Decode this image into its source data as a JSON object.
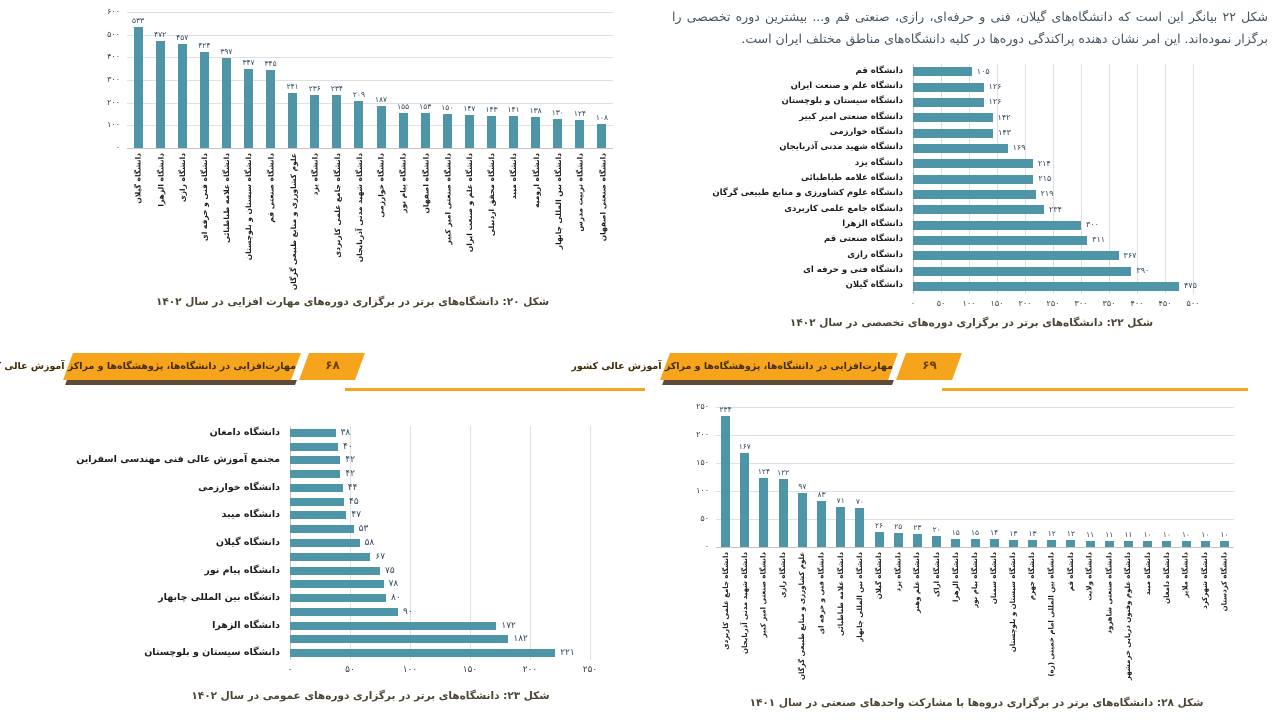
{
  "banner": {
    "title": "مهارت‌افزایی در دانشگاه‌ها، پژوهشگاه‌ها و مراکز آموزش عالی کشور",
    "left_page_number": "۶۸",
    "right_page_number": "۶۹"
  },
  "page_right": {
    "paragraph": "شکل ۲۲ بیانگر این است که دانشگاه‌های گیلان، فنی و حرفه‌ای، رازی، صنعتی قم و... بیشترین دوره تخصصی را برگزار نموده‌اند. این امر نشان دهنده پراکندگی دوره‌ها در کلیه دانشگاه‌های مناطق مختلف ایران است."
  },
  "colors": {
    "bar": "#4e96a7",
    "banner": "#f7a41d",
    "banner_shadow": "#5d4a39",
    "grid": "#e0e0e0",
    "caption": "#4b4430",
    "value_label": "#31475c"
  },
  "chart_data": [
    {
      "id": "fig20",
      "type": "bar",
      "orientation": "vertical",
      "title": "شکل ۲۰: دانشگاه‌های برتر در برگزاری دوره‌های مهارت افزایی در سال ۱۴۰۲",
      "categories": [
        "دانشگاه گیلان",
        "دانشگاه الزهرا",
        "دانشگاه رازی",
        "دانشگاه فنی و حرفه ای",
        "دانشگاه علامه طباطبائی",
        "دانشگاه سیستان و بلوچستان",
        "دانشگاه صنعتی قم",
        "علوم کشاورزی و منابع طبیعی گرگان",
        "دانشگاه یزد",
        "دانشگاه جامع علمی کاربردی",
        "دانشگاه شهید مدنی آذربایجان",
        "دانشگاه خوارزمی",
        "دانشگاه پیام نور",
        "دانشگاه اصفهان",
        "دانشگاه صنعتی امیر کبیر",
        "دانشگاه علم و صنعت ایران",
        "دانشگاه محقق اردبیلی",
        "دانشگاه میبد",
        "دانشگاه ارومیه",
        "دانشگاه بین المللی چابهار",
        "دانشگاه تربیت مدرس",
        "دانشگاه صنعتی اصفهان"
      ],
      "values": [
        533,
        472,
        457,
        424,
        397,
        347,
        345,
        241,
        236,
        234,
        209,
        187,
        155,
        153,
        150,
        147,
        143,
        141,
        138,
        130,
        124,
        108
      ],
      "xlabel": "",
      "ylabel": "",
      "ylim": [
        0,
        600
      ],
      "ytick_step": 100,
      "grid": true,
      "number_format": "persian-digits",
      "legend": "none"
    },
    {
      "id": "fig22",
      "type": "bar",
      "orientation": "horizontal",
      "title": "شکل ۲۲: دانشگاه‌های برتر در برگزاری دوره‌های تخصصی در سال ۱۴۰۲",
      "categories": [
        "دانشگاه قم",
        "دانشگاه علم و صنعت ایران",
        "دانشگاه سیستان و بلوچستان",
        "دانشگاه صنعتی امیر کبیر",
        "دانشگاه خوارزمی",
        "دانشگاه شهید مدنی آذربایجان",
        "دانشگاه یزد",
        "دانشگاه علامه طباطبائی",
        "دانشگاه علوم کشاورزی و منابع طبیعی گرگان",
        "دانشگاه جامع علمی کاربردی",
        "دانشگاه الزهرا",
        "دانشگاه صنعتی قم",
        "دانشگاه رازی",
        "دانشگاه فنی و حرفه ای",
        "دانشگاه گیلان"
      ],
      "values": [
        105,
        126,
        126,
        142,
        143,
        169,
        214,
        215,
        219,
        234,
        300,
        311,
        367,
        390,
        475
      ],
      "xlabel": "",
      "ylabel": "",
      "xlim": [
        0,
        500
      ],
      "xtick_step": 50,
      "grid": true,
      "number_format": "persian-digits",
      "legend": "none"
    },
    {
      "id": "fig23",
      "type": "bar",
      "orientation": "horizontal",
      "title": "شکل ۲۳: دانشگاه‌های برتر در برگزاری دوره‌های عمومی در سال ۱۴۰۲",
      "categories": [
        "دانشگاه دامغان",
        "",
        "مجتمع آموزش عالی فنی مهندسی اسفراین",
        "",
        "دانشگاه خوارزمی",
        "",
        "دانشگاه میبد",
        "",
        "دانشگاه گیلان",
        "",
        "دانشگاه پیام نور",
        "",
        "دانشگاه بین المللی چابهار",
        "",
        "دانشگاه الزهرا",
        "",
        "دانشگاه سیستان و بلوچستان"
      ],
      "values": [
        38,
        40,
        42,
        42,
        44,
        45,
        47,
        53,
        58,
        67,
        75,
        78,
        80,
        90,
        172,
        182,
        221
      ],
      "xlabel": "",
      "ylabel": "",
      "xlim": [
        0,
        250
      ],
      "xtick_step": 50,
      "grid": true,
      "number_format": "persian-digits",
      "legend": "none"
    },
    {
      "id": "fig28",
      "type": "bar",
      "orientation": "vertical",
      "title": "شکل ۲۸: دانشگاه‌های برتر در برگزاری دروه‌ها با مشارکت واحدهای صنعتی در سال ۱۴۰۱",
      "categories": [
        "دانشگاه جامع علمی کاربردی",
        "دانشگاه شهید مدنی آذربایجان",
        "دانشگاه صنعتی امیر کبیر",
        "دانشگاه رازی",
        "علوم کشاورزی و منابع طبیعی گرگان",
        "دانشگاه فنی و حرفه ای",
        "دانشگاه علامه طباطبائی",
        "دانشگاه بین المللی چابهار",
        "دانشگاه گیلان",
        "دانشگاه یزد",
        "دانشگاه علم وهنر",
        "دانشگاه اراک",
        "دانشگاه الزهرا",
        "دانشگاه پیام نور",
        "دانشگاه سمنان",
        "دانشگاه سیستان و بلوچستان",
        "دانشگاه جهرم",
        "دانشگاه بین المللی امام خمینی (ره)",
        "دانشگاه قم",
        "دانشگاه ولایت",
        "دانشگاه صنعتی شاهرود",
        "دانشگاه علوم وفنون دریایی خرمشهر",
        "دانشگاه میبد",
        "دانشگاه دامغان",
        "دانشگاه ملایر",
        "دانشگاه شهرکرد",
        "دانشگاه کردستان"
      ],
      "values": [
        234,
        167,
        124,
        122,
        97,
        83,
        71,
        70,
        26,
        25,
        23,
        20,
        15,
        15,
        14,
        13,
        13,
        12,
        12,
        11,
        11,
        11,
        10,
        10,
        10,
        10,
        10
      ],
      "xlabel": "",
      "ylabel": "",
      "ylim": [
        0,
        250
      ],
      "ytick_step": 50,
      "grid": true,
      "number_format": "persian-digits",
      "legend": "none"
    }
  ]
}
